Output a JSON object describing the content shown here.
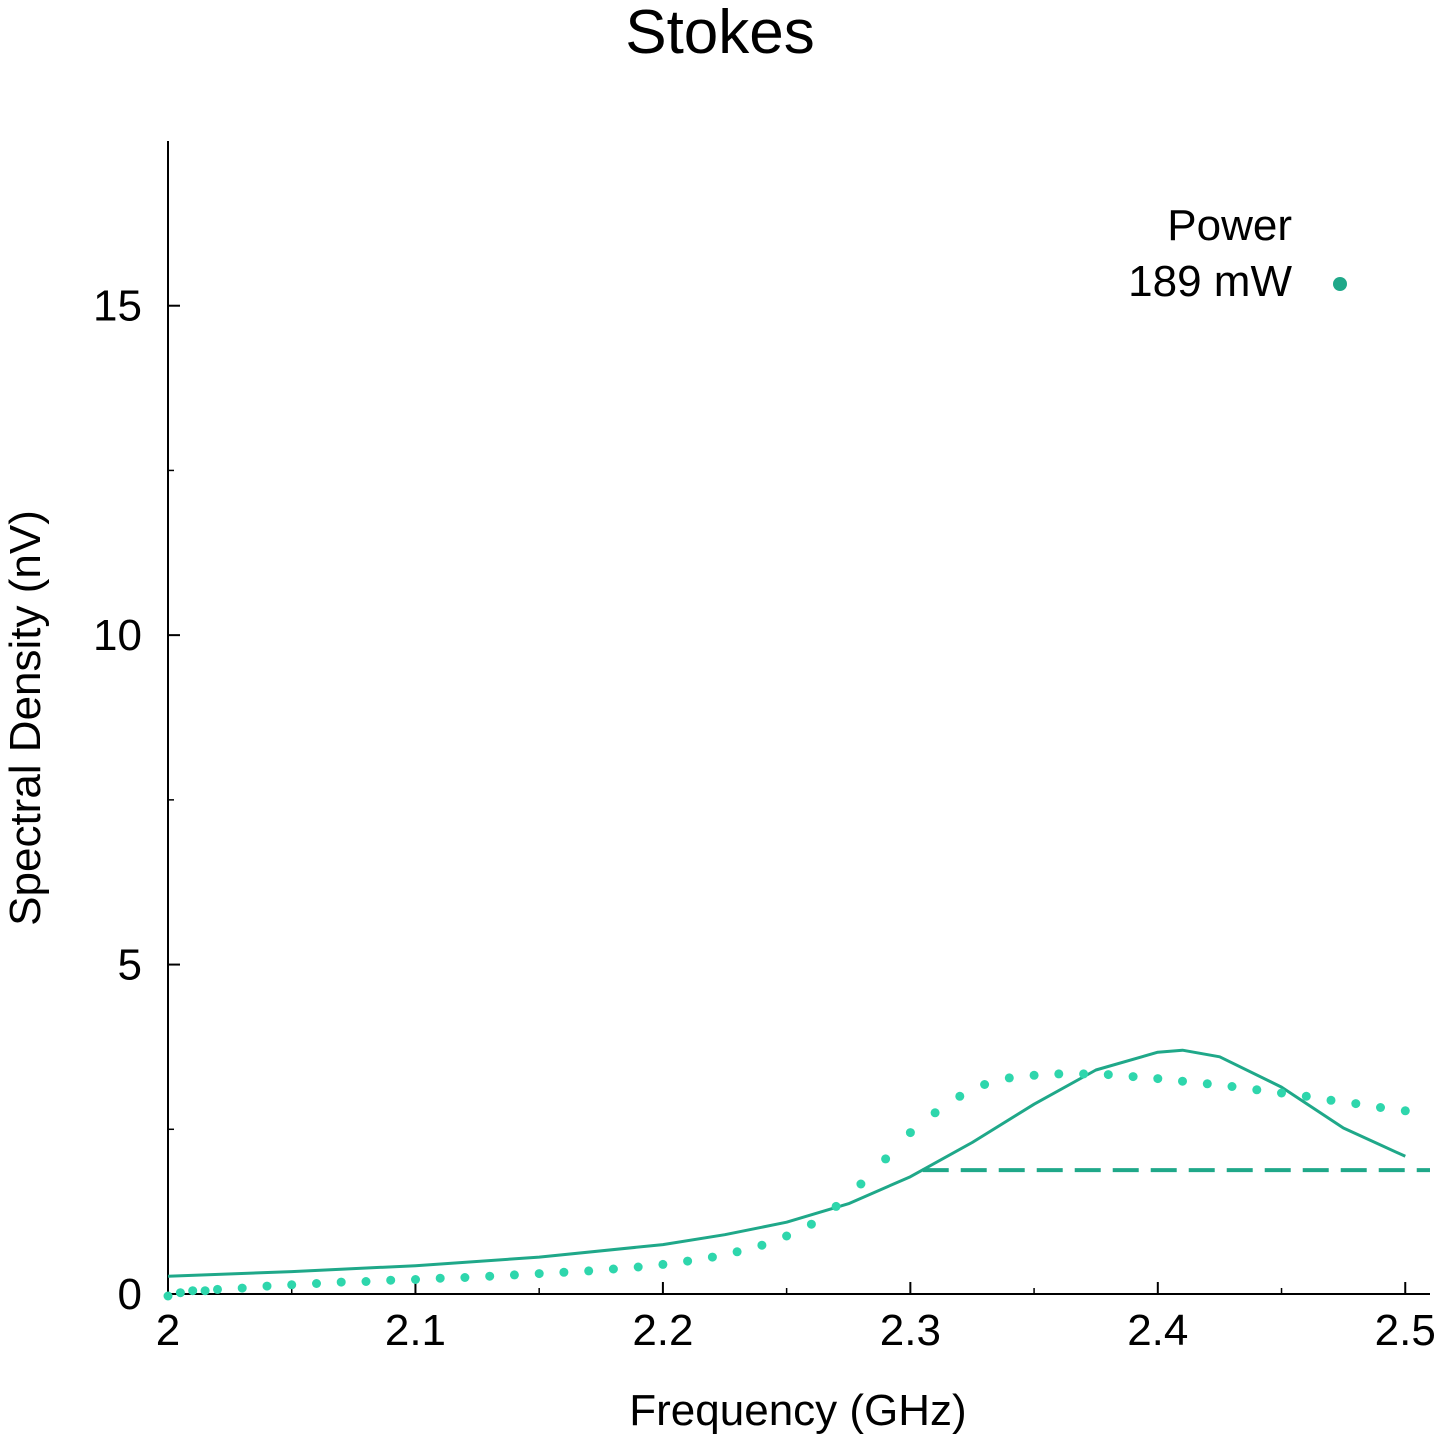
{
  "chart_data": {
    "type": "scatter",
    "title": "Stokes",
    "xlabel": "Frequency (GHz)",
    "ylabel": "Spectral Density (nV)",
    "xlim": [
      2.0,
      2.51
    ],
    "ylim": [
      0,
      17.5
    ],
    "xticks": [
      2.0,
      2.1,
      2.2,
      2.3,
      2.4,
      2.5
    ],
    "xtick_labels": [
      "2",
      "2.1",
      "2.2",
      "2.3",
      "2.4",
      "2.5"
    ],
    "yticks": [
      0,
      5,
      10,
      15
    ],
    "ytick_labels": [
      "0",
      "5",
      "10",
      "15"
    ],
    "grid": false,
    "legend": {
      "title": "Power",
      "placement": "top-right"
    },
    "colors": {
      "points": "#2ed6ac",
      "fit": "#1fa889",
      "threshold": "#1fa889"
    },
    "series": [
      {
        "name": "189 mW",
        "kind": "points",
        "x": [
          2.0,
          2.005,
          2.01,
          2.015,
          2.02,
          2.03,
          2.04,
          2.05,
          2.06,
          2.07,
          2.08,
          2.09,
          2.1,
          2.11,
          2.12,
          2.13,
          2.14,
          2.15,
          2.16,
          2.17,
          2.18,
          2.19,
          2.2,
          2.21,
          2.22,
          2.23,
          2.24,
          2.25,
          2.26,
          2.27,
          2.28,
          2.29,
          2.3,
          2.31,
          2.32,
          2.33,
          2.34,
          2.35,
          2.36,
          2.37,
          2.38,
          2.39,
          2.4,
          2.41,
          2.42,
          2.43,
          2.44,
          2.45,
          2.46,
          2.47,
          2.48,
          2.49,
          2.5
        ],
        "y": [
          -0.03,
          0.02,
          0.05,
          0.05,
          0.07,
          0.09,
          0.12,
          0.14,
          0.16,
          0.18,
          0.19,
          0.21,
          0.22,
          0.24,
          0.25,
          0.27,
          0.29,
          0.31,
          0.33,
          0.35,
          0.38,
          0.41,
          0.45,
          0.5,
          0.56,
          0.64,
          0.74,
          0.88,
          1.06,
          1.33,
          1.67,
          2.05,
          2.45,
          2.75,
          3.0,
          3.18,
          3.28,
          3.32,
          3.34,
          3.34,
          3.33,
          3.3,
          3.27,
          3.23,
          3.19,
          3.15,
          3.1,
          3.05,
          3.0,
          2.94,
          2.89,
          2.83,
          2.78
        ]
      },
      {
        "kind": "fit",
        "x": [
          2.0,
          2.05,
          2.1,
          2.15,
          2.2,
          2.225,
          2.25,
          2.275,
          2.3,
          2.325,
          2.35,
          2.375,
          2.4,
          2.41,
          2.425,
          2.45,
          2.475,
          2.5
        ],
        "y": [
          0.27,
          0.34,
          0.43,
          0.56,
          0.75,
          0.9,
          1.09,
          1.37,
          1.78,
          2.3,
          2.88,
          3.4,
          3.67,
          3.7,
          3.6,
          3.14,
          2.52,
          2.09
        ]
      },
      {
        "kind": "threshold",
        "x": [
          2.305,
          2.51
        ],
        "y": [
          1.88,
          1.88
        ]
      }
    ]
  }
}
